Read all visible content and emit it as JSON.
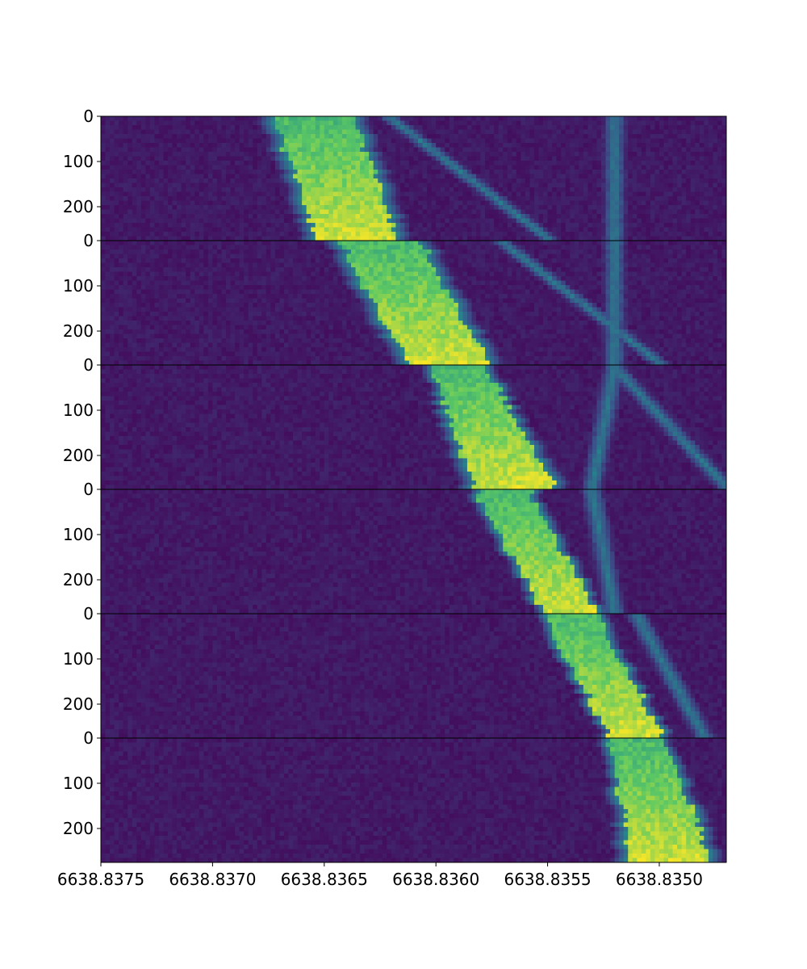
{
  "chart_data": {
    "type": "heatmap",
    "title": "",
    "xlabel": "",
    "ylabel": "",
    "colormap": "viridis",
    "xlim": [
      6638.8375,
      6638.8347
    ],
    "x_ticks": [
      6638.8375,
      6638.837,
      6638.8365,
      6638.836,
      6638.8355,
      6638.835
    ],
    "x_tick_labels": [
      "6638.8375",
      "6638.8370",
      "6638.8365",
      "6638.8360",
      "6638.8355",
      "6638.8350"
    ],
    "panels": [
      {
        "ylim": [
          0,
          275
        ],
        "y_tick_labels": [
          "0",
          "100",
          "200"
        ],
        "bright_band": [
          {
            "y": 0,
            "x_left": 6638.8367,
            "x_right": 6638.8364
          },
          {
            "y": 275,
            "x_left": 6638.8365,
            "x_right": 6638.8362
          }
        ],
        "secondary_bands": [
          {
            "y0": 0,
            "x0": 6638.8362,
            "y1": 275,
            "x1": 6638.8355
          },
          {
            "y0": 0,
            "x0": 6638.8352,
            "y1": 275,
            "x1": 6638.8352
          }
        ]
      },
      {
        "ylim": [
          0,
          275
        ],
        "y_tick_labels": [
          "0",
          "100",
          "200"
        ],
        "bright_band": [
          {
            "y": 0,
            "x_left": 6638.8364,
            "x_right": 6638.8361
          },
          {
            "y": 275,
            "x_left": 6638.8361,
            "x_right": 6638.8358
          }
        ],
        "secondary_bands": [
          {
            "y0": 0,
            "x0": 6638.8357,
            "y1": 275,
            "x1": 6638.835
          },
          {
            "y0": 0,
            "x0": 6638.8352,
            "y1": 275,
            "x1": 6638.8352
          }
        ]
      },
      {
        "ylim": [
          0,
          275
        ],
        "y_tick_labels": [
          "0",
          "100",
          "200"
        ],
        "bright_band": [
          {
            "y": 0,
            "x_left": 6638.836,
            "x_right": 6638.8358
          },
          {
            "y": 275,
            "x_left": 6638.8358,
            "x_right": 6638.8355
          }
        ],
        "secondary_bands": [
          {
            "y0": 0,
            "x0": 6638.8352,
            "y1": 275,
            "x1": 6638.8347
          },
          {
            "y0": 0,
            "x0": 6638.8352,
            "y1": 275,
            "x1": 6638.8353
          }
        ]
      },
      {
        "ylim": [
          0,
          275
        ],
        "y_tick_labels": [
          "0",
          "100",
          "200"
        ],
        "bright_band": [
          {
            "y": 0,
            "x_left": 6638.8358,
            "x_right": 6638.8356
          },
          {
            "y": 275,
            "x_left": 6638.8355,
            "x_right": 6638.8353
          }
        ],
        "secondary_bands": [
          {
            "y0": 0,
            "x0": 6638.8353,
            "y1": 275,
            "x1": 6638.8352
          }
        ]
      },
      {
        "ylim": [
          0,
          275
        ],
        "y_tick_labels": [
          "0",
          "100",
          "200"
        ],
        "bright_band": [
          {
            "y": 0,
            "x_left": 6638.8355,
            "x_right": 6638.8353
          },
          {
            "y": 275,
            "x_left": 6638.8352,
            "x_right": 6638.835
          }
        ],
        "secondary_bands": [
          {
            "y0": 0,
            "x0": 6638.8351,
            "y1": 275,
            "x1": 6638.8348
          }
        ]
      },
      {
        "ylim": [
          0,
          275
        ],
        "y_tick_labels": [
          "0",
          "100",
          "200"
        ],
        "bright_band": [
          {
            "y": 0,
            "x_left": 6638.8352,
            "x_right": 6638.835
          },
          {
            "y": 275,
            "x_left": 6638.8351,
            "x_right": 6638.8348
          }
        ],
        "secondary_bands": []
      }
    ]
  }
}
